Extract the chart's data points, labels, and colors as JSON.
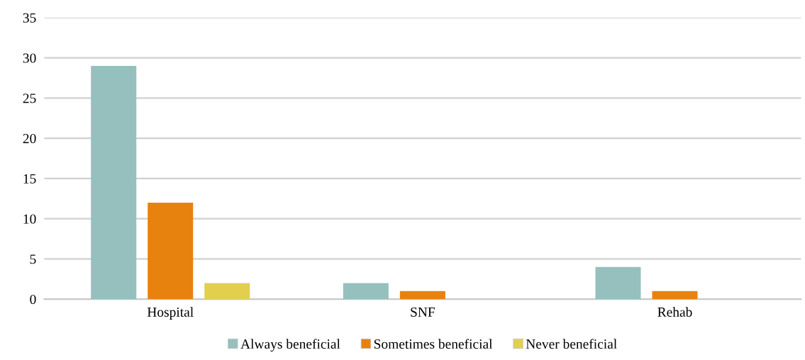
{
  "chart_data": {
    "type": "bar",
    "categories": [
      "Hospital",
      "SNF",
      "Rehab"
    ],
    "series": [
      {
        "name": "Always beneficial",
        "color": "#95c0be",
        "values": [
          29,
          2,
          4
        ]
      },
      {
        "name": "Sometimes beneficial",
        "color": "#e8820e",
        "values": [
          12,
          1,
          1
        ]
      },
      {
        "name": "Never beneficial",
        "color": "#e2cf4e",
        "values": [
          2,
          0,
          0
        ]
      }
    ],
    "ylim": [
      0,
      35
    ],
    "yticks": [
      0,
      5,
      10,
      15,
      20,
      25,
      30,
      35
    ],
    "grid": "y",
    "legend": "bottom"
  }
}
